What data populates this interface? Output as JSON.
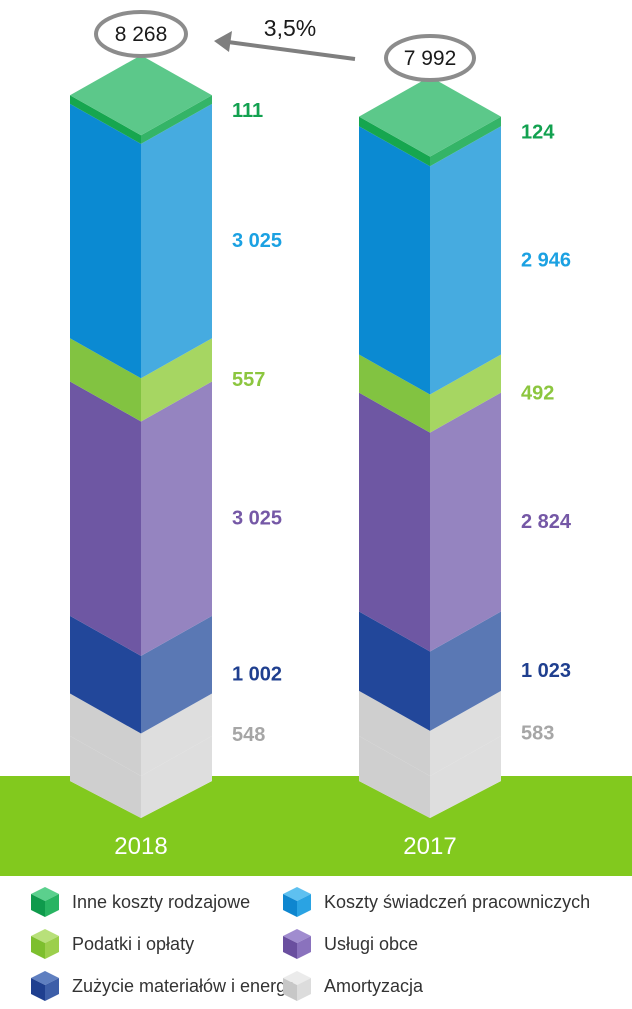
{
  "chart_data": {
    "type": "bar",
    "stacked": true,
    "categories": [
      "2018",
      "2017"
    ],
    "totals": [
      "8 268",
      "7 992"
    ],
    "change_label": "3,5%",
    "series": [
      {
        "name": "Amortyzacja",
        "values": [
          548,
          583
        ],
        "labels": [
          "548",
          "583"
        ],
        "color": "#c8c8c8",
        "label_color": "#a6a6a6",
        "front": "#cfcfcf",
        "side": "#dedede",
        "top": "#e6e6e6",
        "legend_top": "#ebebeb",
        "legend_left": "#c7c7c7",
        "legend_right": "#dcdcdc"
      },
      {
        "name": "Zużycie materiałów i energii",
        "values": [
          1002,
          1023
        ],
        "labels": [
          "1 002",
          "1 023"
        ],
        "color": "#1f3f8f",
        "label_color": "#1f3f8f",
        "front": "#22479a",
        "side": "#5a78b4",
        "top": "#7b95c8",
        "legend_top": "#5f7fc0",
        "legend_left": "#1f3f8f",
        "legend_right": "#3d5ea8"
      },
      {
        "name": "Usługi obce",
        "values": [
          3025,
          2824
        ],
        "labels": [
          "3 025",
          "2 824"
        ],
        "color": "#7558a6",
        "label_color": "#7558a6",
        "front": "#6e57a3",
        "side": "#9584c0",
        "top": "#b2a5d3",
        "legend_top": "#a08ccf",
        "legend_left": "#6a4f9f",
        "legend_right": "#8a72bd"
      },
      {
        "name": "Podatki i opłaty",
        "values": [
          557,
          492
        ],
        "labels": [
          "557",
          "492"
        ],
        "color": "#8cc63f",
        "label_color": "#8cc63f",
        "front": "#82c341",
        "side": "#a6d662",
        "top": "#bfe38a",
        "legend_top": "#b8e07a",
        "legend_left": "#7dbf2e",
        "legend_right": "#9ccf4c"
      },
      {
        "name": "Koszty świadczeń pracowniczych",
        "values": [
          3025,
          2946
        ],
        "labels": [
          "3 025",
          "2 946"
        ],
        "color": "#1ba1e2",
        "label_color": "#1ba1e2",
        "front": "#0b8ad2",
        "side": "#46abe0",
        "top": "#7cc6ec",
        "legend_top": "#5ec0f0",
        "legend_left": "#0e86cf",
        "legend_right": "#2aa3e3"
      },
      {
        "name": "Inne koszty rodzajowe",
        "values": [
          111,
          124
        ],
        "labels": [
          "111",
          "124"
        ],
        "color": "#12a150",
        "label_color": "#12a150",
        "front": "#16a64f",
        "side": "#34b467",
        "top": "#5cc88a",
        "legend_top": "#5bd08d",
        "legend_left": "#0f9a4c",
        "legend_right": "#28b462"
      }
    ]
  },
  "legend": {
    "rows": [
      [
        "Inne koszty rodzajowe",
        "Koszty świadczeń pracowniczych"
      ],
      [
        "Podatki i opłaty",
        "Usługi obce"
      ],
      [
        "Zużycie materiałów i energii",
        "Amortyzacja"
      ]
    ]
  },
  "colors": {
    "ground": "#82c91e",
    "year_label": "#ffffff",
    "oval_stroke": "#8c8c8c",
    "arrow": "#7f7f7f",
    "text": "#1a1a1a"
  }
}
